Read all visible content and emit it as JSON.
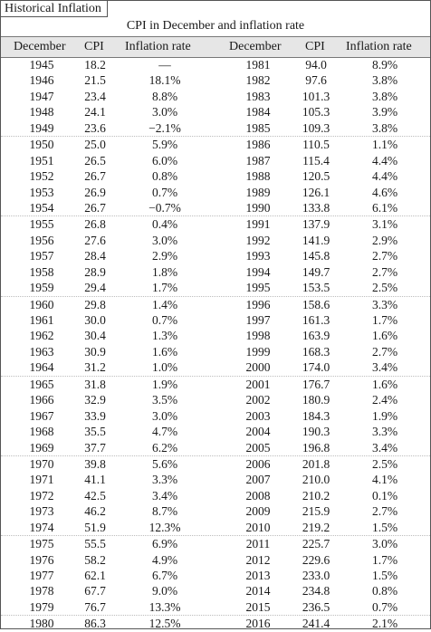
{
  "title": "Historical Inflation",
  "table": {
    "span_header": "CPI in December and inflation rate",
    "columns": [
      "December",
      "CPI",
      "Inflation rate",
      "December",
      "CPI",
      "Inflation rate"
    ],
    "rows": [
      [
        "1945",
        "18.2",
        "—",
        "1981",
        "94.0",
        "8.9%"
      ],
      [
        "1946",
        "21.5",
        "18.1%",
        "1982",
        "97.6",
        "3.8%"
      ],
      [
        "1947",
        "23.4",
        "8.8%",
        "1983",
        "101.3",
        "3.8%"
      ],
      [
        "1948",
        "24.1",
        "3.0%",
        "1984",
        "105.3",
        "3.9%"
      ],
      [
        "1949",
        "23.6",
        "−2.1%",
        "1985",
        "109.3",
        "3.8%"
      ],
      [
        "1950",
        "25.0",
        "5.9%",
        "1986",
        "110.5",
        "1.1%"
      ],
      [
        "1951",
        "26.5",
        "6.0%",
        "1987",
        "115.4",
        "4.4%"
      ],
      [
        "1952",
        "26.7",
        "0.8%",
        "1988",
        "120.5",
        "4.4%"
      ],
      [
        "1953",
        "26.9",
        "0.7%",
        "1989",
        "126.1",
        "4.6%"
      ],
      [
        "1954",
        "26.7",
        "−0.7%",
        "1990",
        "133.8",
        "6.1%"
      ],
      [
        "1955",
        "26.8",
        "0.4%",
        "1991",
        "137.9",
        "3.1%"
      ],
      [
        "1956",
        "27.6",
        "3.0%",
        "1992",
        "141.9",
        "2.9%"
      ],
      [
        "1957",
        "28.4",
        "2.9%",
        "1993",
        "145.8",
        "2.7%"
      ],
      [
        "1958",
        "28.9",
        "1.8%",
        "1994",
        "149.7",
        "2.7%"
      ],
      [
        "1959",
        "29.4",
        "1.7%",
        "1995",
        "153.5",
        "2.5%"
      ],
      [
        "1960",
        "29.8",
        "1.4%",
        "1996",
        "158.6",
        "3.3%"
      ],
      [
        "1961",
        "30.0",
        "0.7%",
        "1997",
        "161.3",
        "1.7%"
      ],
      [
        "1962",
        "30.4",
        "1.3%",
        "1998",
        "163.9",
        "1.6%"
      ],
      [
        "1963",
        "30.9",
        "1.6%",
        "1999",
        "168.3",
        "2.7%"
      ],
      [
        "1964",
        "31.2",
        "1.0%",
        "2000",
        "174.0",
        "3.4%"
      ],
      [
        "1965",
        "31.8",
        "1.9%",
        "2001",
        "176.7",
        "1.6%"
      ],
      [
        "1966",
        "32.9",
        "3.5%",
        "2002",
        "180.9",
        "2.4%"
      ],
      [
        "1967",
        "33.9",
        "3.0%",
        "2003",
        "184.3",
        "1.9%"
      ],
      [
        "1968",
        "35.5",
        "4.7%",
        "2004",
        "190.3",
        "3.3%"
      ],
      [
        "1969",
        "37.7",
        "6.2%",
        "2005",
        "196.8",
        "3.4%"
      ],
      [
        "1970",
        "39.8",
        "5.6%",
        "2006",
        "201.8",
        "2.5%"
      ],
      [
        "1971",
        "41.1",
        "3.3%",
        "2007",
        "210.0",
        "4.1%"
      ],
      [
        "1972",
        "42.5",
        "3.4%",
        "2008",
        "210.2",
        "0.1%"
      ],
      [
        "1973",
        "46.2",
        "8.7%",
        "2009",
        "215.9",
        "2.7%"
      ],
      [
        "1974",
        "51.9",
        "12.3%",
        "2010",
        "219.2",
        "1.5%"
      ],
      [
        "1975",
        "55.5",
        "6.9%",
        "2011",
        "225.7",
        "3.0%"
      ],
      [
        "1976",
        "58.2",
        "4.9%",
        "2012",
        "229.6",
        "1.7%"
      ],
      [
        "1977",
        "62.1",
        "6.7%",
        "2013",
        "233.0",
        "1.5%"
      ],
      [
        "1978",
        "67.7",
        "9.0%",
        "2014",
        "234.8",
        "0.8%"
      ],
      [
        "1979",
        "76.7",
        "13.3%",
        "2015",
        "236.5",
        "0.7%"
      ],
      [
        "1980",
        "86.3",
        "12.5%",
        "2016",
        "241.4",
        "2.1%"
      ]
    ]
  }
}
